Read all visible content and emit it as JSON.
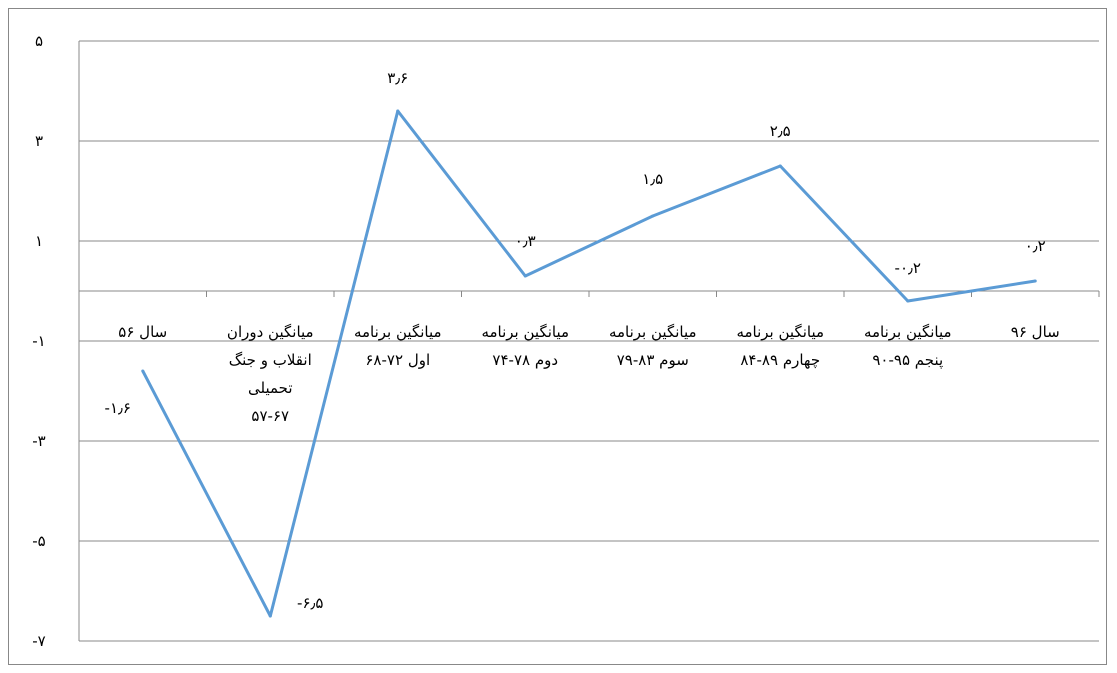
{
  "chart_data": {
    "type": "line",
    "title": "",
    "xlabel": "",
    "ylabel": "",
    "ylim": [
      -7,
      5
    ],
    "y_ticks": [
      5,
      3,
      1,
      -1,
      -3,
      -5,
      -7
    ],
    "y_tick_labels": [
      "۵",
      "۳",
      "۱",
      "-۱",
      "-۳",
      "-۵",
      "-۷"
    ],
    "grid": "horizontal",
    "legend": "none",
    "line_color": "#5b9bd5",
    "categories": [
      [
        "سال ۵۶"
      ],
      [
        "میانگین دوران",
        "انقلاب و جنگ",
        "تحمیلی",
        "۵۷-۶۷"
      ],
      [
        "میانگین برنامه",
        "اول ۷۲-۶۸"
      ],
      [
        "میانگین برنامه",
        "دوم ۷۸-۷۴"
      ],
      [
        "میانگین برنامه",
        "سوم ۸۳-۷۹"
      ],
      [
        "میانگین برنامه",
        "چهارم ۸۹-۸۴"
      ],
      [
        "میانگین برنامه",
        "پنجم ۹۵-۹۰"
      ],
      [
        "سال ۹۶"
      ]
    ],
    "values": [
      -1.6,
      -6.5,
      3.6,
      0.3,
      1.5,
      2.5,
      -0.2,
      0.2
    ],
    "data_labels": [
      "-۱٫۶",
      "-۶٫۵",
      "۳٫۶",
      "۰٫۳",
      "۱٫۵",
      "۲٫۵",
      "-۰٫۲",
      "۰٫۲"
    ]
  }
}
